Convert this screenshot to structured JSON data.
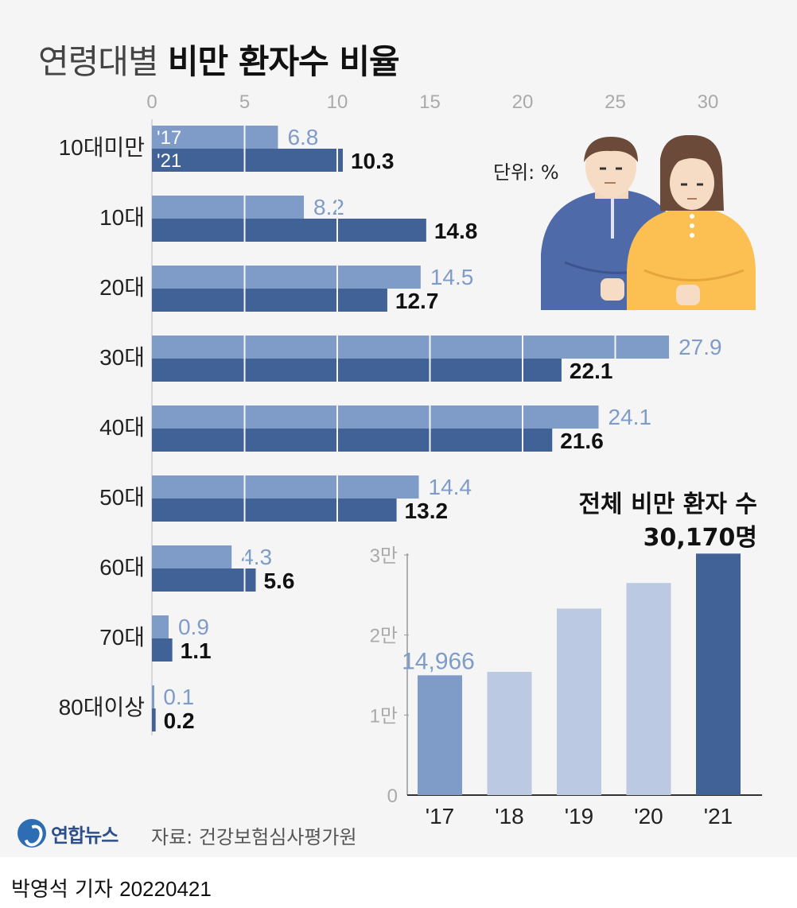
{
  "title": {
    "light": "연령대별",
    "bold": "비만 환자수 비율"
  },
  "unit_label": "단위: %",
  "footer": {
    "reporter": "박영석 기자",
    "date": "20220421"
  },
  "logo": {
    "name": "연합뉴스"
  },
  "source": "자료: 건강보험심사평가원",
  "colors": {
    "y17": "#7f9cc8",
    "y21": "#406296",
    "bar_light": "#bcc9e2",
    "bar_dark": "#406296",
    "axis": "#999999",
    "bg": "#f5f5f5"
  },
  "chart_data": [
    {
      "type": "bar",
      "orientation": "horizontal",
      "categories": [
        "10대미만",
        "10대",
        "20대",
        "30대",
        "40대",
        "50대",
        "60대",
        "70대",
        "80대이상"
      ],
      "series": [
        {
          "name": "'17",
          "values": [
            6.8,
            8.2,
            14.5,
            27.9,
            24.1,
            14.4,
            4.3,
            0.9,
            0.1
          ]
        },
        {
          "name": "'21",
          "values": [
            10.3,
            14.8,
            12.7,
            22.1,
            21.6,
            13.2,
            5.6,
            1.1,
            0.2
          ]
        }
      ],
      "x_ticks": [
        "0",
        "5",
        "10",
        "15",
        "20",
        "25",
        "30"
      ],
      "xlim": [
        0,
        30
      ],
      "grid": true,
      "legend": "inline labels on first category"
    },
    {
      "type": "bar",
      "title": "전체 비만 환자 수",
      "value_label": "30,170명",
      "first_value_label": "14,966",
      "categories": [
        "'17",
        "'18",
        "'19",
        "'20",
        "'21"
      ],
      "values": [
        14966,
        15400,
        23300,
        26500,
        30170
      ],
      "y_ticks": [
        "0",
        "1만",
        "2만",
        "3만"
      ],
      "ylim": [
        0,
        30000
      ]
    }
  ]
}
